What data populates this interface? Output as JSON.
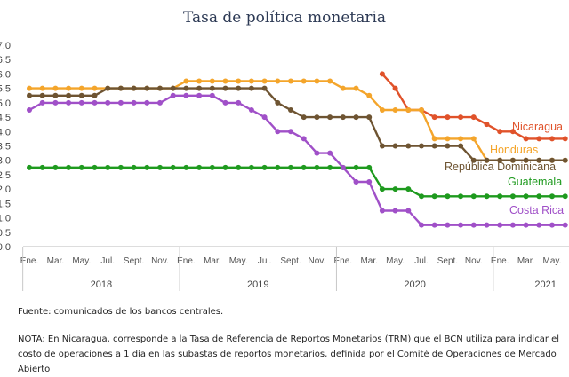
{
  "chart_data": {
    "type": "line",
    "title": "Tasa de política monetaria",
    "yticks": [
      "7.0",
      "6.5",
      "6.0",
      "5.5",
      "5.0",
      "4.5",
      "4.0",
      "3.5",
      "3.0",
      "2.5",
      "2.0",
      "1.5",
      "1.0",
      "0.5",
      "0.0"
    ],
    "ylim": [
      0,
      7
    ],
    "grid": false,
    "month_labels": [
      "Ene.",
      "Mar.",
      "May.",
      "Jul.",
      "Sept.",
      "Nov.",
      "Ene.",
      "Mar.",
      "May.",
      "Jul.",
      "Sept.",
      "Nov.",
      "Ene.",
      "Mar.",
      "May.",
      "Jul.",
      "Sept.",
      "Nov.",
      "Ene.",
      "Mar.",
      "May."
    ],
    "years": [
      "2018",
      "2019",
      "2020",
      "2021"
    ],
    "x": [
      "2018-01",
      "2018-02",
      "2018-03",
      "2018-04",
      "2018-05",
      "2018-06",
      "2018-07",
      "2018-08",
      "2018-09",
      "2018-10",
      "2018-11",
      "2018-12",
      "2019-01",
      "2019-02",
      "2019-03",
      "2019-04",
      "2019-05",
      "2019-06",
      "2019-07",
      "2019-08",
      "2019-09",
      "2019-10",
      "2019-11",
      "2019-12",
      "2020-01",
      "2020-02",
      "2020-03",
      "2020-04",
      "2020-05",
      "2020-06",
      "2020-07",
      "2020-08",
      "2020-09",
      "2020-10",
      "2020-11",
      "2020-12",
      "2021-01",
      "2021-02",
      "2021-03",
      "2021-04",
      "2021-05",
      "2021-06"
    ],
    "series": [
      {
        "name": "Nicaragua",
        "color": "#e0522a",
        "values": [
          null,
          null,
          null,
          null,
          null,
          null,
          null,
          null,
          null,
          null,
          null,
          null,
          null,
          null,
          null,
          null,
          null,
          null,
          null,
          null,
          null,
          null,
          null,
          null,
          null,
          null,
          null,
          6.0,
          5.5,
          4.75,
          4.75,
          4.5,
          4.5,
          4.5,
          4.5,
          4.25,
          4.0,
          4.0,
          3.75,
          3.75,
          3.75,
          3.75
        ]
      },
      {
        "name": "Honduras",
        "color": "#f4a52b",
        "values": [
          5.5,
          5.5,
          5.5,
          5.5,
          5.5,
          5.5,
          5.5,
          5.5,
          5.5,
          5.5,
          5.5,
          5.5,
          5.75,
          5.75,
          5.75,
          5.75,
          5.75,
          5.75,
          5.75,
          5.75,
          5.75,
          5.75,
          5.75,
          5.75,
          5.5,
          5.5,
          5.25,
          4.75,
          4.75,
          4.75,
          4.75,
          3.75,
          3.75,
          3.75,
          3.75,
          3.0,
          3.0,
          3.0,
          3.0,
          3.0,
          3.0,
          3.0
        ]
      },
      {
        "name": "República Dominicana",
        "color": "#6e5432",
        "values": [
          5.25,
          5.25,
          5.25,
          5.25,
          5.25,
          5.25,
          5.5,
          5.5,
          5.5,
          5.5,
          5.5,
          5.5,
          5.5,
          5.5,
          5.5,
          5.5,
          5.5,
          5.5,
          5.5,
          5.0,
          4.75,
          4.5,
          4.5,
          4.5,
          4.5,
          4.5,
          4.5,
          3.5,
          3.5,
          3.5,
          3.5,
          3.5,
          3.5,
          3.5,
          3.0,
          3.0,
          3.0,
          3.0,
          3.0,
          3.0,
          3.0,
          3.0
        ]
      },
      {
        "name": "Guatemala",
        "color": "#1e9a1e",
        "values": [
          2.75,
          2.75,
          2.75,
          2.75,
          2.75,
          2.75,
          2.75,
          2.75,
          2.75,
          2.75,
          2.75,
          2.75,
          2.75,
          2.75,
          2.75,
          2.75,
          2.75,
          2.75,
          2.75,
          2.75,
          2.75,
          2.75,
          2.75,
          2.75,
          2.75,
          2.75,
          2.75,
          2.0,
          2.0,
          2.0,
          1.75,
          1.75,
          1.75,
          1.75,
          1.75,
          1.75,
          1.75,
          1.75,
          1.75,
          1.75,
          1.75,
          1.75
        ]
      },
      {
        "name": "Costa Rica",
        "color": "#a050c8",
        "values": [
          4.75,
          5.0,
          5.0,
          5.0,
          5.0,
          5.0,
          5.0,
          5.0,
          5.0,
          5.0,
          5.0,
          5.25,
          5.25,
          5.25,
          5.25,
          5.0,
          5.0,
          4.75,
          4.5,
          4.0,
          4.0,
          3.75,
          3.25,
          3.25,
          2.75,
          2.25,
          2.25,
          1.25,
          1.25,
          1.25,
          0.75,
          0.75,
          0.75,
          0.75,
          0.75,
          0.75,
          0.75,
          0.75,
          0.75,
          0.75,
          0.75,
          0.75
        ]
      }
    ]
  },
  "footer": {
    "source": "Fuente: comunicados de los bancos centrales.",
    "note": "NOTA: En Nicaragua, corresponde a la Tasa de Referencia de Reportos Monetarios (TRM) que el BCN utiliza para indicar el costo de operaciones a 1 día en las subastas de reportos monetarios, definida por el Comité de Operaciones de Mercado Abierto"
  }
}
